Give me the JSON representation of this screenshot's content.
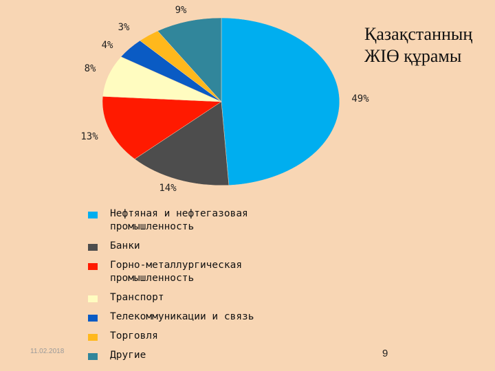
{
  "slide": {
    "title_lines": [
      "Қазақстанның",
      "ЖІӨ құрамы"
    ],
    "footer_date": "11.02.2018",
    "page_number": "9"
  },
  "chart_data": {
    "type": "pie",
    "title": "",
    "slices": [
      {
        "label": "Нефтяная и нефтегазовая\nпромышленность",
        "value": 49,
        "value_label": "49%",
        "color": "#00aeef"
      },
      {
        "label": "Банки",
        "value": 14,
        "value_label": "14%",
        "color": "#4d4d4d"
      },
      {
        "label": "Горно-металлургическая\nпромышленность",
        "value": 13,
        "value_label": "13%",
        "color": "#ff1a00"
      },
      {
        "label": "Транспорт",
        "value": 8,
        "value_label": "8%",
        "color": "#fffcc0"
      },
      {
        "label": "Телекоммуникации и связь",
        "value": 4,
        "value_label": "4%",
        "color": "#0a5bc4"
      },
      {
        "label": "Торговля",
        "value": 3,
        "value_label": "3%",
        "color": "#ffb81c"
      },
      {
        "label": "Другие",
        "value": 9,
        "value_label": "9%",
        "color": "#31869b"
      }
    ],
    "legend_position": "bottom"
  }
}
